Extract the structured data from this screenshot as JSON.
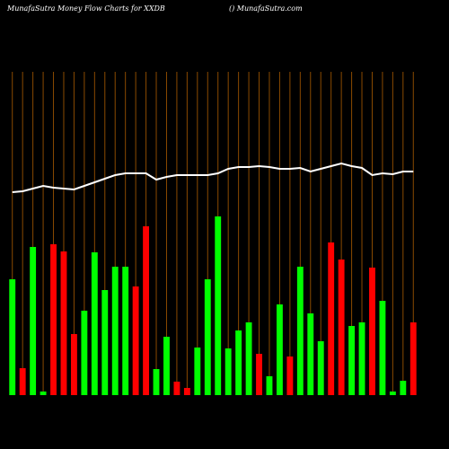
{
  "chart_data": {
    "type": "bar",
    "title": "MunafaSutra  Money Flow  Charts for XXDB",
    "subtitle": "() MunafaSutra.com",
    "categories": [
      null,
      null,
      null,
      null,
      null,
      null,
      null,
      null,
      null,
      null,
      null,
      null,
      null,
      null,
      null,
      null,
      null,
      null,
      null,
      null,
      null,
      null,
      null,
      null,
      null,
      null,
      null,
      null,
      null,
      null,
      null,
      null,
      null,
      null,
      null,
      null,
      null,
      null,
      null,
      null
    ],
    "series": [
      {
        "type": "bar",
        "values": [
          129,
          30,
          165,
          4,
          168,
          160,
          68,
          94,
          159,
          117,
          143,
          143,
          121,
          188,
          29,
          65,
          15,
          8,
          53,
          129,
          199,
          52,
          72,
          81,
          46,
          21,
          101,
          43,
          143,
          91,
          60,
          170,
          151,
          77,
          81,
          142,
          105,
          4,
          16,
          81
        ],
        "colors": [
          "#00ff00",
          "#ff0000",
          "#00ff00",
          "#00ff00",
          "#ff0000",
          "#ff0000",
          "#ff0000",
          "#00ff00",
          "#00ff00",
          "#00ff00",
          "#00ff00",
          "#00ff00",
          "#ff0000",
          "#ff0000",
          "#00ff00",
          "#00ff00",
          "#ff0000",
          "#ff0000",
          "#00ff00",
          "#00ff00",
          "#00ff00",
          "#00ff00",
          "#00ff00",
          "#00ff00",
          "#ff0000",
          "#00ff00",
          "#00ff00",
          "#ff0000",
          "#00ff00",
          "#00ff00",
          "#00ff00",
          "#ff0000",
          "#ff0000",
          "#00ff00",
          "#00ff00",
          "#ff0000",
          "#00ff00",
          "#00ff00",
          "#00ff00",
          "#ff0000"
        ]
      },
      {
        "type": "line",
        "color": "#ffffff",
        "values": [
          226,
          227,
          230,
          233,
          231,
          230,
          229,
          233,
          237,
          241,
          245,
          247,
          247,
          247,
          240,
          243,
          245,
          245,
          245,
          245,
          247,
          252,
          254,
          254,
          255,
          254,
          252,
          252,
          253,
          249,
          252,
          255,
          258,
          255,
          253,
          245,
          247,
          246,
          249,
          249
        ]
      }
    ],
    "ylim": [
      0,
      360
    ]
  }
}
